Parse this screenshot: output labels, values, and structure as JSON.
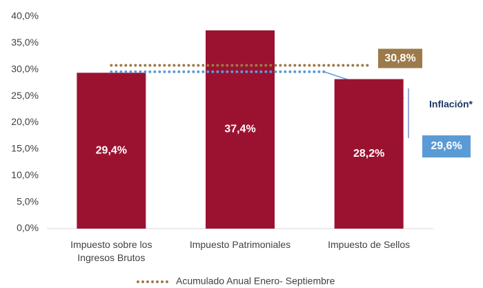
{
  "chart_data": {
    "type": "bar",
    "categories": [
      "Impuesto sobre los Ingresos Brutos",
      "Impuesto Patrimoniales",
      "Impuesto de Sellos"
    ],
    "values": [
      29.4,
      37.4,
      28.2
    ],
    "value_labels": [
      "29,4%",
      "37,4%",
      "28,2%"
    ],
    "color": "#9b1230",
    "ylim": [
      0,
      40
    ],
    "yticks": [
      {
        "value": 0,
        "label": "0,0%"
      },
      {
        "value": 5,
        "label": "5,0%"
      },
      {
        "value": 10,
        "label": "10,0%"
      },
      {
        "value": 15,
        "label": "15,0%"
      },
      {
        "value": 20,
        "label": "20,0%"
      },
      {
        "value": 25,
        "label": "25,0%"
      },
      {
        "value": 30,
        "label": "30,0%"
      },
      {
        "value": 35,
        "label": "35,0%"
      },
      {
        "value": 40,
        "label": "40,0%"
      }
    ],
    "reference_line": {
      "name": "Acumulado Anual Enero- Septiembre",
      "value": 30.8,
      "value_label": "30,8%",
      "color": "#9c7a4a"
    },
    "inflation": {
      "label": "Inflación*",
      "value": 29.6,
      "value_label": "29,6%",
      "color": "#5b9bd5"
    },
    "legend": "bottom"
  }
}
